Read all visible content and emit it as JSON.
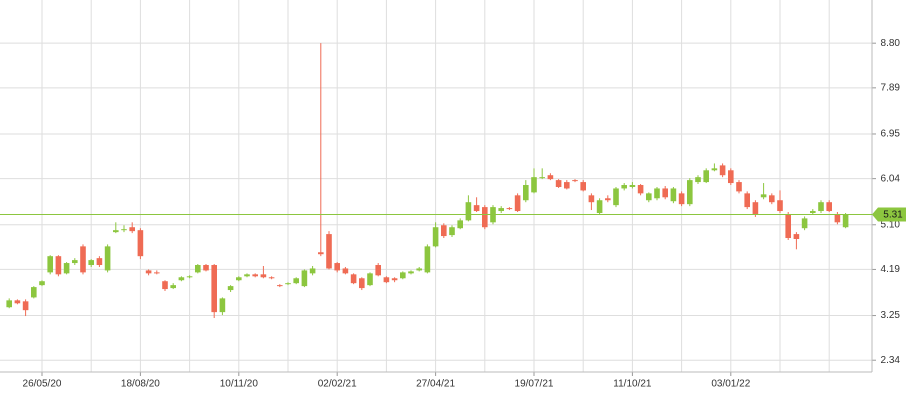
{
  "chart_data": {
    "type": "candlestick",
    "categories": [
      null,
      null,
      null,
      null,
      "26/05/20",
      null,
      null,
      null,
      null,
      null,
      null,
      null,
      null,
      null,
      null,
      null,
      "18/08/20",
      null,
      null,
      null,
      null,
      null,
      null,
      null,
      null,
      null,
      null,
      null,
      "10/11/20",
      null,
      null,
      null,
      null,
      null,
      null,
      null,
      null,
      null,
      null,
      null,
      "02/02/21",
      null,
      null,
      null,
      null,
      null,
      null,
      null,
      null,
      null,
      null,
      null,
      "27/04/21",
      null,
      null,
      null,
      null,
      null,
      null,
      null,
      null,
      null,
      null,
      null,
      "19/07/21",
      null,
      null,
      null,
      null,
      null,
      null,
      null,
      null,
      null,
      null,
      null,
      "11/10/21",
      null,
      null,
      null,
      null,
      null,
      null,
      null,
      null,
      null,
      null,
      null,
      "03/01/22",
      null,
      null,
      null,
      null,
      null,
      null,
      null,
      null,
      null,
      null,
      null,
      null,
      null,
      null
    ],
    "open": [
      3.42,
      3.56,
      3.54,
      3.62,
      3.87,
      4.13,
      4.46,
      4.11,
      4.32,
      4.66,
      4.28,
      4.42,
      4.17,
      4.95,
      4.99,
      5.05,
      4.99,
      4.17,
      4.13,
      3.95,
      3.81,
      3.97,
      4.03,
      4.13,
      4.28,
      4.28,
      3.32,
      3.77,
      3.97,
      4.05,
      4.09,
      4.09,
      4.03,
      3.87,
      3.89,
      3.91,
      3.85,
      4.11,
      4.54,
      4.91,
      4.32,
      4.21,
      4.09,
      4.01,
      3.87,
      4.28,
      4.03,
      4.01,
      4.01,
      4.11,
      4.17,
      4.13,
      4.66,
      5.09,
      4.89,
      5.03,
      5.19,
      5.5,
      5.46,
      5.15,
      5.38,
      5.44,
      5.7,
      5.6,
      5.76,
      6.05,
      6.11,
      6.01,
      5.97,
      6.01,
      5.97,
      5.7,
      5.34,
      5.64,
      5.5,
      5.84,
      5.87,
      5.91,
      5.6,
      5.64,
      5.84,
      5.58,
      5.74,
      5.52,
      5.97,
      5.97,
      6.21,
      6.31,
      6.21,
      5.97,
      5.74,
      5.56,
      5.66,
      5.7,
      5.6,
      5.32,
      4.91,
      5.03,
      5.34,
      5.38,
      5.56,
      5.32,
      5.05
    ],
    "high": [
      3.6,
      3.58,
      3.58,
      3.85,
      3.97,
      4.48,
      4.48,
      4.34,
      4.42,
      4.7,
      4.4,
      4.46,
      4.7,
      5.15,
      5.09,
      5.15,
      5.03,
      4.19,
      4.17,
      3.97,
      3.91,
      4.05,
      4.07,
      4.3,
      4.3,
      4.3,
      3.62,
      3.87,
      4.05,
      4.11,
      4.11,
      4.26,
      4.05,
      3.89,
      3.93,
      4.03,
      4.19,
      4.26,
      8.8,
      4.97,
      4.34,
      4.24,
      4.11,
      4.03,
      4.13,
      4.32,
      4.05,
      4.03,
      4.15,
      4.17,
      4.24,
      4.7,
      5.15,
      5.13,
      5.09,
      5.23,
      5.7,
      5.66,
      5.5,
      5.5,
      5.48,
      5.46,
      5.74,
      6.01,
      6.25,
      6.25,
      6.15,
      6.03,
      6.01,
      6.03,
      6.01,
      5.74,
      5.64,
      5.7,
      5.87,
      5.95,
      5.97,
      5.93,
      5.76,
      5.87,
      5.89,
      5.87,
      5.78,
      6.05,
      6.11,
      6.25,
      6.35,
      6.35,
      6.25,
      6.01,
      5.78,
      5.6,
      5.95,
      5.74,
      5.8,
      5.36,
      4.95,
      5.27,
      5.42,
      5.6,
      5.6,
      5.36,
      5.34
    ],
    "low": [
      3.4,
      3.48,
      3.24,
      3.6,
      3.85,
      4.09,
      4.05,
      4.09,
      4.28,
      4.09,
      4.24,
      4.24,
      4.13,
      4.93,
      4.95,
      4.93,
      4.4,
      4.07,
      4.09,
      3.75,
      3.79,
      3.95,
      4.01,
      4.11,
      4.15,
      3.2,
      3.26,
      3.73,
      3.95,
      4.03,
      4.03,
      4.01,
      3.99,
      3.83,
      3.87,
      3.89,
      3.83,
      4.07,
      4.46,
      4.19,
      4.13,
      4.09,
      3.89,
      3.77,
      3.85,
      4.05,
      3.91,
      3.93,
      3.99,
      4.09,
      4.15,
      4.11,
      4.64,
      4.83,
      4.85,
      5.01,
      5.17,
      5.36,
      5.01,
      5.11,
      5.34,
      5.4,
      5.36,
      5.56,
      5.74,
      6.03,
      6.01,
      5.85,
      5.82,
      5.97,
      5.78,
      5.4,
      5.3,
      5.56,
      5.46,
      5.8,
      5.84,
      5.7,
      5.56,
      5.6,
      5.62,
      5.54,
      5.48,
      5.48,
      5.93,
      5.95,
      6.19,
      6.07,
      5.91,
      5.74,
      5.42,
      5.26,
      5.62,
      5.52,
      5.34,
      4.79,
      4.6,
      4.99,
      5.3,
      5.34,
      5.36,
      5.11,
      5.03
    ],
    "close": [
      3.56,
      3.5,
      3.36,
      3.83,
      3.95,
      4.46,
      4.09,
      4.32,
      4.38,
      4.13,
      4.38,
      4.28,
      4.66,
      4.99,
      5.01,
      4.97,
      4.46,
      4.11,
      4.11,
      3.79,
      3.87,
      4.03,
      4.05,
      4.28,
      4.17,
      3.32,
      3.6,
      3.85,
      4.03,
      4.09,
      4.05,
      4.03,
      4.01,
      3.85,
      3.91,
      4.01,
      4.17,
      4.21,
      4.5,
      4.21,
      4.17,
      4.11,
      3.91,
      3.81,
      4.11,
      4.07,
      3.93,
      3.97,
      4.13,
      4.15,
      4.21,
      4.66,
      5.05,
      4.87,
      5.05,
      5.19,
      5.56,
      5.38,
      5.05,
      5.46,
      5.44,
      5.42,
      5.38,
      5.91,
      6.07,
      6.07,
      6.03,
      5.87,
      5.84,
      5.99,
      5.8,
      5.56,
      5.6,
      5.6,
      5.84,
      5.91,
      5.91,
      5.74,
      5.74,
      5.84,
      5.66,
      5.84,
      5.52,
      6.01,
      6.07,
      6.21,
      6.25,
      6.11,
      5.95,
      5.78,
      5.46,
      5.32,
      5.72,
      5.56,
      5.38,
      4.83,
      4.81,
      5.23,
      5.38,
      5.56,
      5.38,
      5.15,
      5.3
    ],
    "up_color": "#8cc63f",
    "down_color": "#ef6b54",
    "last_price": 5.31,
    "last_price_color": "#8cc63f",
    "ylim": [
      2.1,
      9.68
    ],
    "yticks": [
      {
        "value": 8.8,
        "label": "8.80"
      },
      7.89,
      6.95,
      6.04,
      {
        "value": 5.1,
        "label": "5.10"
      },
      4.19,
      3.25,
      2.34
    ],
    "grid": true
  }
}
